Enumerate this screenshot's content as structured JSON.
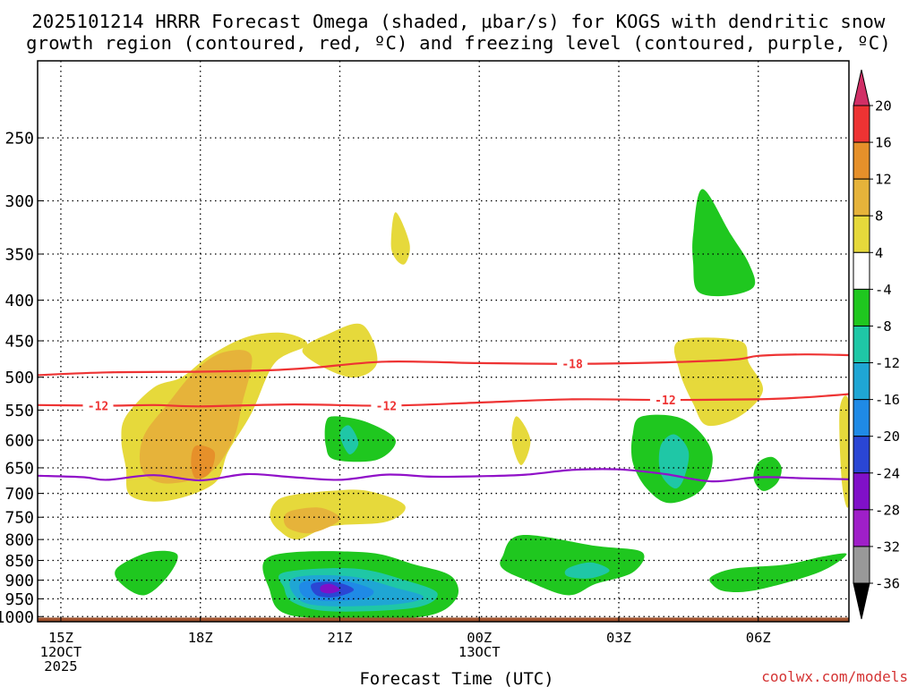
{
  "chart_data": {
    "type": "heatmap",
    "title_line1": "2025101214 HRRR Forecast Omega (shaded, μbar/s) for KOGS with dendritic snow",
    "title_line2": "growth region (contoured, red, ºC) and freezing level (contoured, purple, ºC)",
    "xlabel": "Forecast Time (UTC)",
    "credit": "coolwx.com/models",
    "x_ticks": [
      {
        "hour": 15,
        "lines": [
          "15Z",
          "12OCT",
          "2025"
        ]
      },
      {
        "hour": 18,
        "lines": [
          "18Z"
        ]
      },
      {
        "hour": 21,
        "lines": [
          "21Z"
        ]
      },
      {
        "hour": 24,
        "lines": [
          "00Z",
          "13OCT"
        ]
      },
      {
        "hour": 27,
        "lines": [
          "03Z"
        ]
      },
      {
        "hour": 30,
        "lines": [
          "06Z"
        ]
      }
    ],
    "y_ticks": [
      250,
      300,
      350,
      400,
      450,
      500,
      550,
      600,
      650,
      700,
      750,
      800,
      850,
      900,
      950,
      1000
    ],
    "xlim_hours": [
      14.5,
      31.95
    ],
    "ylim_hpa": [
      1015,
      200
    ],
    "contour_lines": [
      {
        "name": "-18",
        "color": "#ee3333",
        "label_at_hour": 26.0,
        "points": [
          [
            14.5,
            497
          ],
          [
            16,
            493
          ],
          [
            18,
            492
          ],
          [
            19.5,
            490
          ],
          [
            20.5,
            486
          ],
          [
            22,
            478
          ],
          [
            24,
            480
          ],
          [
            26,
            481
          ],
          [
            28,
            479
          ],
          [
            29.5,
            475
          ],
          [
            30,
            470
          ],
          [
            31,
            468
          ],
          [
            31.95,
            469
          ]
        ]
      },
      {
        "name": "-12",
        "color": "#ee3333",
        "label_at_hour": 15.8,
        "label2_at_hour": 22.0,
        "label3_at_hour": 28.0,
        "points": [
          [
            14.5,
            542
          ],
          [
            16,
            543
          ],
          [
            17,
            542
          ],
          [
            18,
            544
          ],
          [
            20,
            541
          ],
          [
            22,
            543
          ],
          [
            24,
            538
          ],
          [
            26,
            533
          ],
          [
            28,
            534
          ],
          [
            30,
            533
          ],
          [
            31,
            530
          ],
          [
            31.6,
            527
          ],
          [
            31.95,
            525
          ]
        ]
      },
      {
        "name": "freezing",
        "color": "#9010c8",
        "points": [
          [
            14.5,
            665
          ],
          [
            15.5,
            668
          ],
          [
            16,
            673
          ],
          [
            17,
            664
          ],
          [
            18,
            674
          ],
          [
            19,
            662
          ],
          [
            20,
            668
          ],
          [
            21,
            673
          ],
          [
            22,
            663
          ],
          [
            23,
            667
          ],
          [
            24,
            666
          ],
          [
            25,
            663
          ],
          [
            26,
            654
          ],
          [
            27,
            653
          ],
          [
            28,
            662
          ],
          [
            29,
            676
          ],
          [
            30,
            668
          ],
          [
            31,
            670
          ],
          [
            31.95,
            672
          ]
        ]
      }
    ],
    "shaded_regions": [
      {
        "omega": 4,
        "color": "#e6d93b",
        "points": [
          [
            16.4,
            650
          ],
          [
            16.3,
            600
          ],
          [
            16.4,
            560
          ],
          [
            17,
            515
          ],
          [
            17.6,
            500
          ],
          [
            18.2,
            470
          ],
          [
            19,
            445
          ],
          [
            19.8,
            440
          ],
          [
            20.3,
            455
          ],
          [
            19.6,
            480
          ],
          [
            19.1,
            555
          ],
          [
            18.6,
            620
          ],
          [
            18.3,
            680
          ],
          [
            17.3,
            715
          ],
          [
            16.5,
            705
          ]
        ]
      },
      {
        "omega": 8,
        "color": "#e6b33a",
        "points": [
          [
            16.7,
            640
          ],
          [
            16.8,
            590
          ],
          [
            17.3,
            540
          ],
          [
            17.9,
            490
          ],
          [
            18.5,
            465
          ],
          [
            19.1,
            470
          ],
          [
            18.9,
            540
          ],
          [
            18.7,
            600
          ],
          [
            18.2,
            660
          ],
          [
            17.4,
            680
          ],
          [
            16.9,
            670
          ]
        ]
      },
      {
        "omega": 12,
        "color": "#e6902a",
        "points": [
          [
            17.8,
            640
          ],
          [
            17.9,
            610
          ],
          [
            18.3,
            620
          ],
          [
            18.2,
            660
          ],
          [
            17.9,
            670
          ]
        ]
      },
      {
        "omega": 4,
        "color": "#e6d93b",
        "points": [
          [
            20.2,
            465
          ],
          [
            20.8,
            440
          ],
          [
            21.5,
            430
          ],
          [
            21.8,
            480
          ],
          [
            21.2,
            500
          ]
        ]
      },
      {
        "omega": 4,
        "color": "#e6d93b",
        "points": [
          [
            22.1,
            340
          ],
          [
            22.2,
            310
          ],
          [
            22.5,
            340
          ],
          [
            22.4,
            360
          ],
          [
            22.2,
            355
          ]
        ]
      },
      {
        "omega": 4,
        "color": "#e6d93b",
        "points": [
          [
            24.7,
            600
          ],
          [
            24.8,
            560
          ],
          [
            25.1,
            600
          ],
          [
            24.9,
            645
          ]
        ]
      },
      {
        "omega": 4,
        "color": "#e6d93b",
        "points": [
          [
            19.6,
            720
          ],
          [
            19.9,
            705
          ],
          [
            20.8,
            695
          ],
          [
            21.6,
            695
          ],
          [
            22.4,
            725
          ],
          [
            22.0,
            760
          ],
          [
            20.8,
            770
          ],
          [
            20.1,
            800
          ],
          [
            19.7,
            780
          ],
          [
            19.5,
            750
          ]
        ]
      },
      {
        "omega": 8,
        "color": "#e6b33a",
        "points": [
          [
            19.8,
            750
          ],
          [
            20.0,
            735
          ],
          [
            20.6,
            730
          ],
          [
            21.0,
            755
          ],
          [
            20.4,
            785
          ],
          [
            19.9,
            775
          ]
        ]
      },
      {
        "omega": 4,
        "color": "#e6d93b",
        "points": [
          [
            28.3,
            450
          ],
          [
            29.6,
            450
          ],
          [
            29.8,
            480
          ],
          [
            30.1,
            520
          ],
          [
            29.6,
            560
          ],
          [
            28.9,
            575
          ],
          [
            28.6,
            540
          ],
          [
            28.3,
            490
          ]
        ]
      },
      {
        "omega": 4,
        "color": "#e6d93b",
        "points": [
          [
            31.75,
            550
          ],
          [
            31.95,
            540
          ],
          [
            31.95,
            720
          ],
          [
            31.8,
            680
          ]
        ]
      },
      {
        "omega": -4,
        "color": "#1fc71f",
        "points": [
          [
            20.7,
            570
          ],
          [
            20.9,
            560
          ],
          [
            21.6,
            570
          ],
          [
            22.2,
            600
          ],
          [
            21.8,
            635
          ],
          [
            20.9,
            635
          ],
          [
            20.7,
            610
          ]
        ]
      },
      {
        "omega": -8,
        "color": "#1fc7a6",
        "points": [
          [
            21.0,
            590
          ],
          [
            21.2,
            575
          ],
          [
            21.4,
            605
          ],
          [
            21.2,
            625
          ]
        ]
      },
      {
        "omega": -4,
        "color": "#1fc71f",
        "points": [
          [
            28.6,
            330
          ],
          [
            28.8,
            290
          ],
          [
            29.4,
            330
          ],
          [
            29.8,
            360
          ],
          [
            29.9,
            385
          ],
          [
            29.3,
            395
          ],
          [
            28.7,
            390
          ],
          [
            28.6,
            360
          ]
        ]
      },
      {
        "omega": -4,
        "color": "#1fc71f",
        "points": [
          [
            27.3,
            590
          ],
          [
            27.5,
            560
          ],
          [
            28.4,
            565
          ],
          [
            29.0,
            620
          ],
          [
            28.8,
            690
          ],
          [
            28.1,
            720
          ],
          [
            27.6,
            690
          ],
          [
            27.3,
            640
          ]
        ]
      },
      {
        "omega": -8,
        "color": "#1fc7a6",
        "points": [
          [
            27.9,
            610
          ],
          [
            28.2,
            590
          ],
          [
            28.5,
            620
          ],
          [
            28.4,
            670
          ],
          [
            28.2,
            690
          ],
          [
            27.9,
            660
          ]
        ]
      },
      {
        "omega": -4,
        "color": "#1fc71f",
        "points": [
          [
            30.0,
            640
          ],
          [
            30.3,
            630
          ],
          [
            30.5,
            650
          ],
          [
            30.4,
            680
          ],
          [
            30.1,
            695
          ],
          [
            29.9,
            670
          ]
        ]
      },
      {
        "omega": -4,
        "color": "#1fc71f",
        "points": [
          [
            16.2,
            870
          ],
          [
            16.9,
            830
          ],
          [
            17.5,
            835
          ],
          [
            17.3,
            890
          ],
          [
            16.8,
            940
          ],
          [
            16.3,
            910
          ]
        ]
      },
      {
        "omega": -4,
        "color": "#1fc71f",
        "points": [
          [
            19.5,
            840
          ],
          [
            21.5,
            830
          ],
          [
            22.6,
            860
          ],
          [
            23.4,
            890
          ],
          [
            23.5,
            950
          ],
          [
            22.8,
            1000
          ],
          [
            20.8,
            1005
          ],
          [
            19.8,
            990
          ],
          [
            19.5,
            930
          ]
        ]
      },
      {
        "omega": -8,
        "color": "#1fc7a6",
        "points": [
          [
            19.8,
            880
          ],
          [
            21.3,
            870
          ],
          [
            22.4,
            900
          ],
          [
            23.1,
            935
          ],
          [
            22.6,
            975
          ],
          [
            20.8,
            985
          ],
          [
            20.0,
            960
          ],
          [
            19.8,
            920
          ]
        ]
      },
      {
        "omega": -12,
        "color": "#1fa6d4",
        "points": [
          [
            20.0,
            895
          ],
          [
            21.2,
            890
          ],
          [
            22.2,
            920
          ],
          [
            22.8,
            945
          ],
          [
            22.2,
            965
          ],
          [
            20.7,
            970
          ],
          [
            20.1,
            950
          ]
        ]
      },
      {
        "omega": -16,
        "color": "#1f8ae6",
        "points": [
          [
            20.2,
            905
          ],
          [
            21.0,
            900
          ],
          [
            21.7,
            925
          ],
          [
            21.5,
            950
          ],
          [
            20.6,
            955
          ],
          [
            20.2,
            940
          ]
        ]
      },
      {
        "omega": -20,
        "color": "#2a46d4",
        "points": [
          [
            20.4,
            910
          ],
          [
            20.9,
            905
          ],
          [
            21.3,
            925
          ],
          [
            20.9,
            945
          ],
          [
            20.5,
            940
          ]
        ]
      },
      {
        "omega": -24,
        "color": "#8010c8",
        "points": [
          [
            20.6,
            915
          ],
          [
            20.8,
            910
          ],
          [
            21.0,
            925
          ],
          [
            20.8,
            935
          ],
          [
            20.6,
            930
          ]
        ]
      },
      {
        "omega": -4,
        "color": "#1fc71f",
        "points": [
          [
            24.5,
            840
          ],
          [
            24.9,
            790
          ],
          [
            26.5,
            815
          ],
          [
            27.5,
            830
          ],
          [
            27.3,
            880
          ],
          [
            26.5,
            910
          ],
          [
            25.9,
            940
          ],
          [
            25.0,
            900
          ],
          [
            24.5,
            870
          ]
        ]
      },
      {
        "omega": -8,
        "color": "#1fc7a6",
        "points": [
          [
            25.9,
            870
          ],
          [
            26.4,
            855
          ],
          [
            26.8,
            875
          ],
          [
            26.4,
            895
          ],
          [
            25.9,
            890
          ]
        ]
      },
      {
        "omega": -4,
        "color": "#1fc71f",
        "points": [
          [
            29.0,
            890
          ],
          [
            29.5,
            870
          ],
          [
            30.6,
            860
          ],
          [
            31.4,
            840
          ],
          [
            31.9,
            835
          ],
          [
            31.3,
            880
          ],
          [
            30.0,
            925
          ],
          [
            29.3,
            930
          ],
          [
            29.0,
            910
          ]
        ]
      }
    ],
    "ground": {
      "color": "#a0522d",
      "from_hpa": 1000,
      "to_hpa": 1015
    },
    "legend": {
      "position": "right",
      "labels": [
        "20",
        "16",
        "12",
        "8",
        "4",
        "-4",
        "-8",
        "-12",
        "-16",
        "-20",
        "-24",
        "-28",
        "-32",
        "-36"
      ],
      "colors": [
        "#d12f66",
        "#ee3333",
        "#e6902a",
        "#e6b33a",
        "#e6d93b",
        "#ffffff",
        "#1fc71f",
        "#1fc7a6",
        "#1fa6d4",
        "#1f8ae6",
        "#2a46d4",
        "#8010c8",
        "#9f1fc8",
        "#999999",
        "#000000"
      ]
    }
  }
}
